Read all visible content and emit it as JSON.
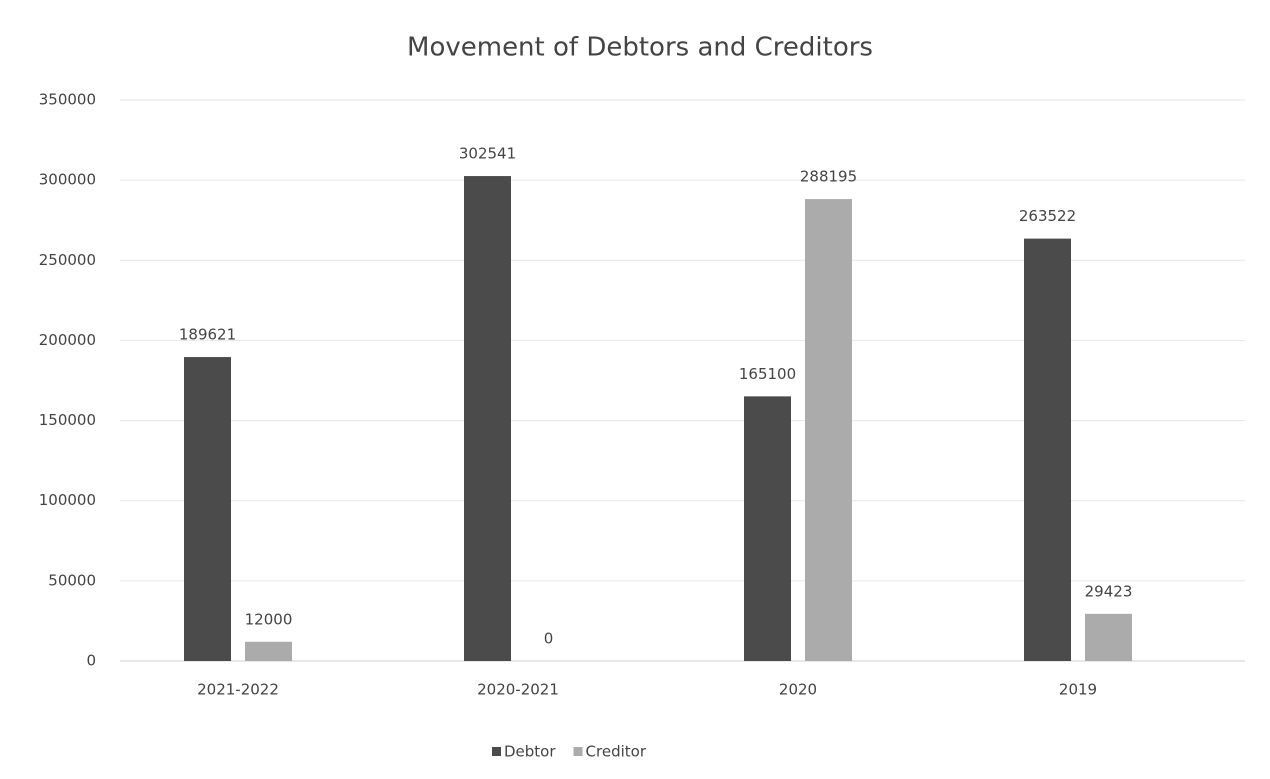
{
  "chart_data": {
    "type": "bar",
    "title": "Movement of Debtors and Creditors",
    "categories": [
      "2021-2022",
      "2020-2021",
      "2020",
      "2019"
    ],
    "series": [
      {
        "name": "Debtor",
        "color": "#4b4b4b",
        "values": [
          189621,
          302541,
          165100,
          263522
        ]
      },
      {
        "name": "Creditor",
        "color": "#ababab",
        "values": [
          12000,
          0,
          288195,
          29423
        ]
      }
    ],
    "ylim": [
      0,
      350000
    ],
    "yticks": [
      0,
      50000,
      100000,
      150000,
      200000,
      250000,
      300000,
      350000
    ],
    "grid": true,
    "legend": "bottom"
  }
}
